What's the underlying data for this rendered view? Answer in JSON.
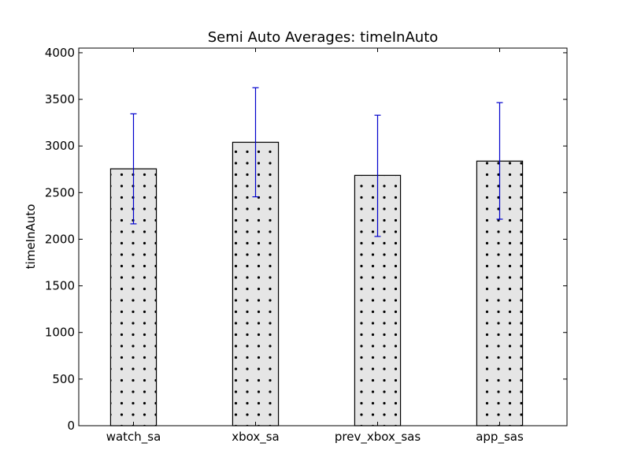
{
  "chart_data": {
    "type": "bar",
    "title": "Semi Auto Averages: timeInAuto",
    "xlabel": "",
    "ylabel": "timeInAuto",
    "categories": [
      "watch_sa",
      "xbox_sa",
      "prev_xbox_sas",
      "app_sas"
    ],
    "values": [
      2755,
      3040,
      2685,
      2838
    ],
    "error_low": [
      2165,
      2455,
      2030,
      2215
    ],
    "error_high": [
      3345,
      3625,
      3330,
      3465
    ],
    "ylim": [
      0,
      4050
    ],
    "yticks": [
      0,
      500,
      1000,
      1500,
      2000,
      2500,
      3000,
      3500,
      4000
    ],
    "grid": false,
    "bar_color": "#e5e5e5",
    "bar_edge_color": "#000000",
    "hatch": "dots",
    "error_color": "#0000cc"
  }
}
